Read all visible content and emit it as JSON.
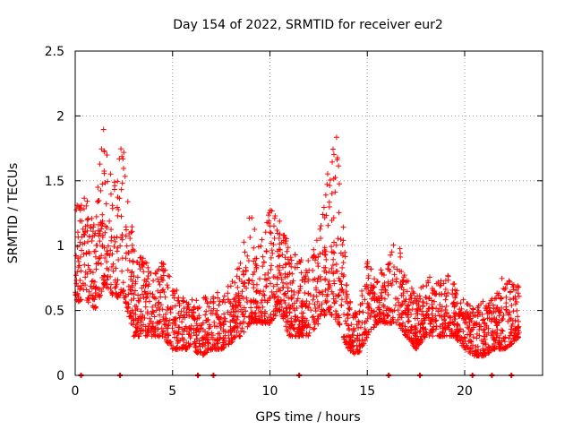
{
  "chart_data": {
    "type": "scatter",
    "title": "Day 154 of 2022, SRMTID for receiver eur2",
    "xlabel": "GPS time / hours",
    "ylabel": "SRMTID / TECUs",
    "xlim": [
      0,
      24
    ],
    "ylim": [
      0,
      2.5
    ],
    "xticks": [
      "0",
      "5",
      "10",
      "15",
      "20"
    ],
    "xtick_values": [
      0,
      5,
      10,
      15,
      20
    ],
    "yticks": [
      "0",
      "0.5",
      "1",
      "1.5",
      "2",
      "2.5"
    ],
    "ytick_values": [
      0,
      0.5,
      1,
      1.5,
      2,
      2.5
    ],
    "grid": true,
    "marker": "+",
    "color": "#ff0000",
    "envelope": {
      "description": "Approximate data envelope (hour, low, high) used to depict the dense scatter",
      "points": [
        [
          0.0,
          0.55,
          1.3
        ],
        [
          0.5,
          0.6,
          1.4
        ],
        [
          1.0,
          0.5,
          1.2
        ],
        [
          1.5,
          0.7,
          2.0
        ],
        [
          2.0,
          0.6,
          1.5
        ],
        [
          2.5,
          0.6,
          1.9
        ],
        [
          3.0,
          0.3,
          1.0
        ],
        [
          3.5,
          0.3,
          0.9
        ],
        [
          4.0,
          0.3,
          0.8
        ],
        [
          4.5,
          0.3,
          0.9
        ],
        [
          5.0,
          0.2,
          0.7
        ],
        [
          5.5,
          0.2,
          0.6
        ],
        [
          6.0,
          0.2,
          0.6
        ],
        [
          6.5,
          0.15,
          0.55
        ],
        [
          7.0,
          0.2,
          0.8
        ],
        [
          7.5,
          0.2,
          0.6
        ],
        [
          8.0,
          0.25,
          0.75
        ],
        [
          8.5,
          0.3,
          0.9
        ],
        [
          9.0,
          0.4,
          1.3
        ],
        [
          9.5,
          0.4,
          1.0
        ],
        [
          10.0,
          0.4,
          1.3
        ],
        [
          10.5,
          0.5,
          1.2
        ],
        [
          11.0,
          0.3,
          1.0
        ],
        [
          11.5,
          0.3,
          0.9
        ],
        [
          12.0,
          0.3,
          0.9
        ],
        [
          12.5,
          0.4,
          1.1
        ],
        [
          13.0,
          0.5,
          1.6
        ],
        [
          13.5,
          0.4,
          1.95
        ],
        [
          14.0,
          0.2,
          0.6
        ],
        [
          14.5,
          0.15,
          0.5
        ],
        [
          15.0,
          0.3,
          0.9
        ],
        [
          15.5,
          0.4,
          0.8
        ],
        [
          16.0,
          0.4,
          0.9
        ],
        [
          16.5,
          0.4,
          1.1
        ],
        [
          17.0,
          0.3,
          0.8
        ],
        [
          17.5,
          0.2,
          0.6
        ],
        [
          18.0,
          0.3,
          0.8
        ],
        [
          18.5,
          0.3,
          0.7
        ],
        [
          19.0,
          0.3,
          0.8
        ],
        [
          19.5,
          0.3,
          0.7
        ],
        [
          20.0,
          0.2,
          0.6
        ],
        [
          20.5,
          0.15,
          0.5
        ],
        [
          21.0,
          0.15,
          0.6
        ],
        [
          21.5,
          0.2,
          0.6
        ],
        [
          22.0,
          0.2,
          0.8
        ],
        [
          22.5,
          0.25,
          0.7
        ],
        [
          22.8,
          0.3,
          0.7
        ]
      ]
    },
    "zero_markers": [
      0.3,
      2.3,
      6.3,
      7.1,
      11.5,
      16.1,
      17.7,
      20.4,
      21.4,
      22.4
    ]
  }
}
